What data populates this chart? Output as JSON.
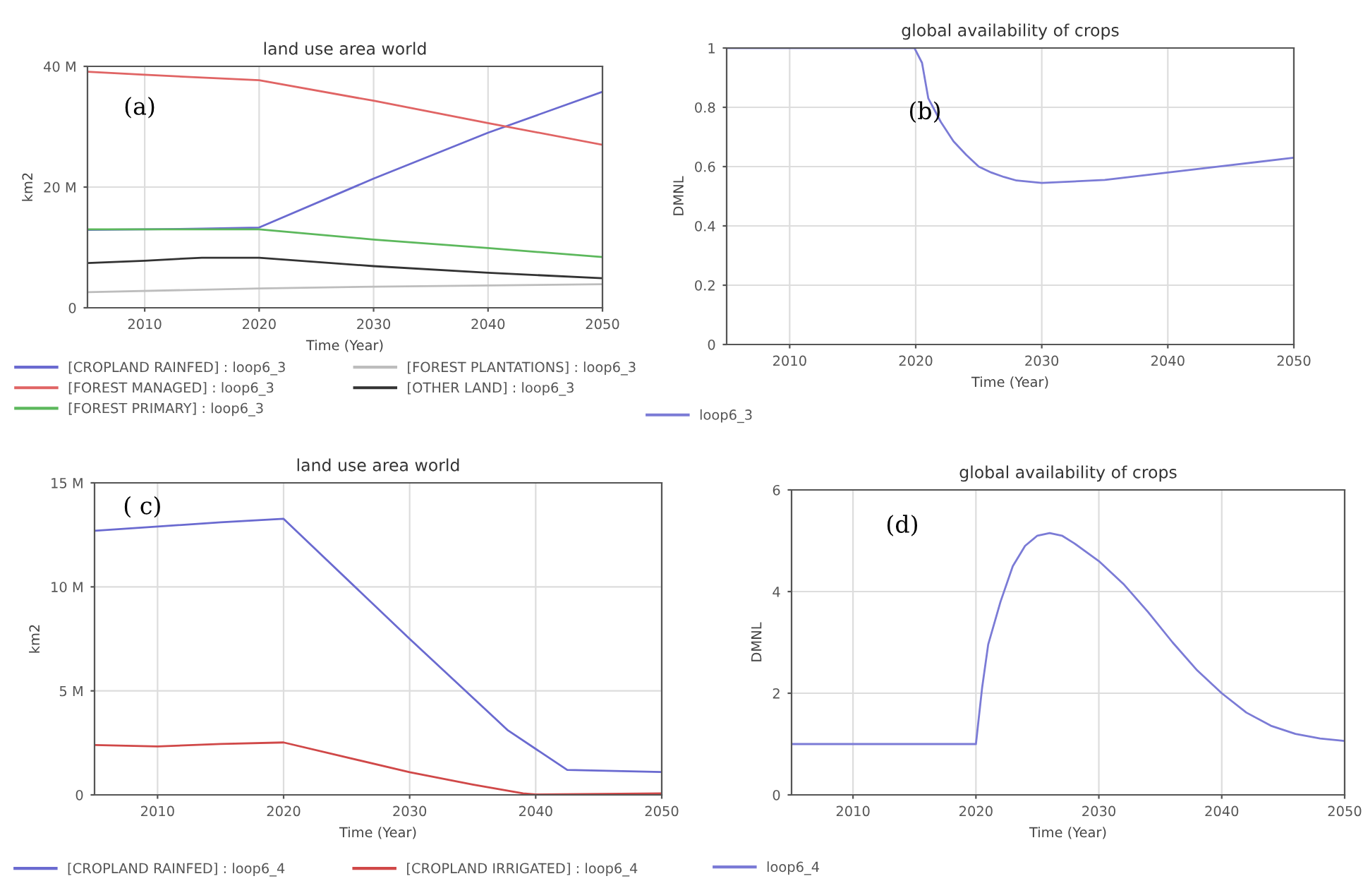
{
  "chart_data": [
    {
      "type": "line",
      "title": "land use area world",
      "xlabel": "Time (Year)",
      "ylabel": "km2",
      "annotations": [
        "(a)"
      ],
      "xlim": [
        2005,
        2050
      ],
      "xticks": [
        2010,
        2020,
        2030,
        2040,
        2050
      ],
      "ylim": [
        0,
        40000000
      ],
      "yticks": [
        {
          "value": 0,
          "label": "0"
        },
        {
          "value": 20000000,
          "label": "20 M"
        },
        {
          "value": 40000000,
          "label": "40 M"
        }
      ],
      "grid": true,
      "legend": "bottom",
      "series": [
        {
          "name": "[CROPLAND RAINFED] : loop6_3",
          "color": "#6a6ad0",
          "x": [
            2005,
            2010,
            2015,
            2020,
            2030,
            2040,
            2050
          ],
          "values": [
            12900000,
            13000000,
            13100000,
            13300000,
            21400000,
            29000000,
            35800000
          ]
        },
        {
          "name": "[FOREST MANAGED] : loop6_3",
          "color": "#e06464",
          "x": [
            2005,
            2010,
            2020,
            2030,
            2040,
            2050
          ],
          "values": [
            39100000,
            38600000,
            37700000,
            34300000,
            30600000,
            27000000
          ]
        },
        {
          "name": "[FOREST PRIMARY] : loop6_3",
          "color": "#5cb85c",
          "x": [
            2005,
            2020,
            2030,
            2040,
            2050
          ],
          "values": [
            13000000,
            13000000,
            11300000,
            9900000,
            8400000
          ]
        },
        {
          "name": "[FOREST PLANTATIONS] : loop6_3",
          "color": "#bdbdbd",
          "x": [
            2005,
            2020,
            2030,
            2040,
            2050
          ],
          "values": [
            2600000,
            3200000,
            3500000,
            3700000,
            3900000
          ]
        },
        {
          "name": "[OTHER LAND] : loop6_3",
          "color": "#333333",
          "x": [
            2005,
            2010,
            2015,
            2020,
            2030,
            2040,
            2050
          ],
          "values": [
            7400000,
            7800000,
            8300000,
            8300000,
            6900000,
            5800000,
            4900000
          ]
        }
      ]
    },
    {
      "type": "line",
      "title": "global availability of crops",
      "xlabel": "Time (Year)",
      "ylabel": "DMNL",
      "annotations": [
        "(b)"
      ],
      "xlim": [
        2005,
        2050
      ],
      "xticks": [
        2010,
        2020,
        2030,
        2040,
        2050
      ],
      "ylim": [
        0,
        1
      ],
      "yticks": [
        0,
        0.2,
        0.4,
        0.6,
        0.8,
        1
      ],
      "grid": true,
      "legend": "bottom",
      "series": [
        {
          "name": "loop6_3",
          "color": "#7b7bd6",
          "x": [
            2005,
            2019.9,
            2020.5,
            2021,
            2022,
            2023,
            2024,
            2025,
            2026,
            2027,
            2028,
            2030,
            2035,
            2040,
            2045,
            2050
          ],
          "values": [
            1,
            1,
            0.95,
            0.83,
            0.75,
            0.685,
            0.64,
            0.6,
            0.58,
            0.565,
            0.553,
            0.545,
            0.555,
            0.58,
            0.605,
            0.63
          ]
        }
      ]
    },
    {
      "type": "line",
      "title": "land use area world",
      "xlabel": "Time (Year)",
      "ylabel": "km2",
      "annotations": [
        "( c)"
      ],
      "xlim": [
        2005,
        2050
      ],
      "xticks": [
        2010,
        2020,
        2030,
        2040,
        2050
      ],
      "ylim": [
        0,
        15000000
      ],
      "yticks": [
        {
          "value": 0,
          "label": "0"
        },
        {
          "value": 5000000,
          "label": "5 M"
        },
        {
          "value": 10000000,
          "label": "10 M"
        },
        {
          "value": 15000000,
          "label": "15 M"
        }
      ],
      "grid": true,
      "legend": "bottom",
      "series": [
        {
          "name": "[CROPLAND RAINFED] : loop6_4",
          "color": "#6a6ad0",
          "x": [
            2005,
            2010,
            2015,
            2020,
            2030,
            2037.8,
            2042.5,
            2050
          ],
          "values": [
            12700000,
            12900000,
            13100000,
            13270000,
            7500000,
            3100000,
            1200000,
            1100000
          ]
        },
        {
          "name": "[CROPLAND IRRIGATED] : loop6_4",
          "color": "#d04848",
          "x": [
            2005,
            2010,
            2015,
            2020,
            2030,
            2035,
            2039,
            2040,
            2050
          ],
          "values": [
            2400000,
            2330000,
            2450000,
            2520000,
            1090000,
            500000,
            70000,
            20000,
            70000
          ]
        }
      ]
    },
    {
      "type": "line",
      "title": "global availability of crops",
      "xlabel": "Time (Year)",
      "ylabel": "DMNL",
      "annotations": [
        "(d)"
      ],
      "xlim": [
        2005,
        2050
      ],
      "xticks": [
        2010,
        2020,
        2030,
        2040,
        2050
      ],
      "ylim": [
        0,
        6
      ],
      "yticks": [
        0,
        2,
        4,
        6
      ],
      "grid": true,
      "legend": "bottom",
      "series": [
        {
          "name": "loop6_4",
          "color": "#7b7bd6",
          "x": [
            2005,
            2020,
            2020.5,
            2021,
            2022,
            2023,
            2024,
            2025,
            2026,
            2027,
            2028,
            2030,
            2032,
            2034,
            2036,
            2038,
            2040,
            2042,
            2044,
            2046,
            2048,
            2050
          ],
          "values": [
            1.0,
            1.0,
            2.1,
            2.96,
            3.8,
            4.5,
            4.9,
            5.1,
            5.15,
            5.1,
            4.95,
            4.6,
            4.15,
            3.6,
            3.0,
            2.45,
            2.0,
            1.62,
            1.36,
            1.2,
            1.11,
            1.06
          ]
        }
      ]
    }
  ]
}
